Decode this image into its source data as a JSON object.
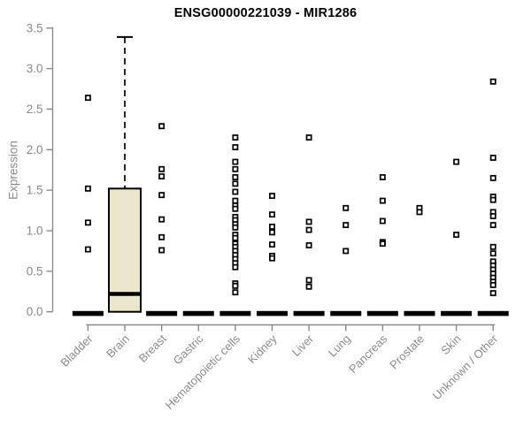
{
  "chart_data": {
    "type": "boxplot",
    "title": "ENSG00000221039 - MIR1286",
    "ylabel": "Expression",
    "xlabel": "",
    "ylim": [
      0,
      3.5
    ],
    "yticks": [
      0,
      0.5,
      1,
      1.5,
      2,
      2.5,
      3,
      3.5
    ],
    "grid": false,
    "legend": "none",
    "colors": {
      "box_fill": "#ece6cc",
      "box_stroke": "#000000",
      "axis": "#8a8a8a",
      "tick_label": "#8a8a8a",
      "data": "#000000",
      "background": "#ffffff"
    },
    "categories": [
      "Bladder",
      "Brain",
      "Breast",
      "Gastric",
      "Hematopoietic cells",
      "Kidney",
      "Liver",
      "Lung",
      "Pancreas",
      "Prostate",
      "Skin",
      "Unknown / Other"
    ],
    "boxes": [
      {
        "category": "Bladder",
        "q1": 0,
        "median": 0,
        "q3": 0,
        "whisker_low": 0,
        "whisker_high": 0,
        "outliers": [
          2.64,
          1.52,
          1.1,
          0.77
        ]
      },
      {
        "category": "Brain",
        "q1": 0,
        "median": 0.22,
        "q3": 1.52,
        "whisker_low": 0,
        "whisker_high": 3.39,
        "outliers": []
      },
      {
        "category": "Breast",
        "q1": 0,
        "median": 0,
        "q3": 0,
        "whisker_low": 0,
        "whisker_high": 0,
        "outliers": [
          2.29,
          1.76,
          1.67,
          1.44,
          1.14,
          0.92,
          0.76
        ]
      },
      {
        "category": "Gastric",
        "q1": 0,
        "median": 0,
        "q3": 0,
        "whisker_low": 0,
        "whisker_high": 0,
        "outliers": []
      },
      {
        "category": "Hematopoietic cells",
        "q1": 0,
        "median": 0,
        "q3": 0,
        "whisker_low": 0,
        "whisker_high": 0,
        "outliers": [
          2.15,
          2.03,
          1.85,
          1.76,
          1.66,
          1.58,
          1.48,
          1.37,
          1.31,
          1.27,
          1.17,
          1.13,
          1.08,
          1.04,
          0.95,
          0.91,
          0.84,
          0.8,
          0.75,
          0.7,
          0.65,
          0.6,
          0.55,
          0.35,
          0.32,
          0.24
        ]
      },
      {
        "category": "Kidney",
        "q1": 0,
        "median": 0,
        "q3": 0,
        "whisker_low": 0,
        "whisker_high": 0,
        "outliers": [
          1.43,
          1.2,
          1.05,
          0.98,
          0.83,
          0.69,
          0.66
        ]
      },
      {
        "category": "Liver",
        "q1": 0,
        "median": 0,
        "q3": 0,
        "whisker_low": 0,
        "whisker_high": 0,
        "outliers": [
          2.15,
          1.11,
          1.01,
          0.82,
          0.39,
          0.31
        ]
      },
      {
        "category": "Lung",
        "q1": 0,
        "median": 0,
        "q3": 0,
        "whisker_low": 0,
        "whisker_high": 0,
        "outliers": [
          1.28,
          1.07,
          0.75
        ]
      },
      {
        "category": "Pancreas",
        "q1": 0,
        "median": 0,
        "q3": 0,
        "whisker_low": 0,
        "whisker_high": 0,
        "outliers": [
          1.66,
          1.37,
          1.12,
          0.86,
          0.84
        ]
      },
      {
        "category": "Prostate",
        "q1": 0,
        "median": 0,
        "q3": 0,
        "whisker_low": 0,
        "whisker_high": 0,
        "outliers": [
          1.28,
          1.23
        ]
      },
      {
        "category": "Skin",
        "q1": 0,
        "median": 0,
        "q3": 0,
        "whisker_low": 0,
        "whisker_high": 0,
        "outliers": [
          1.85,
          0.95
        ]
      },
      {
        "category": "Unknown / Other",
        "q1": 0,
        "median": 0,
        "q3": 0,
        "whisker_low": 0,
        "whisker_high": 0,
        "outliers": [
          2.84,
          1.9,
          1.65,
          1.42,
          1.38,
          1.23,
          1.18,
          1.07,
          0.8,
          0.72,
          0.62,
          0.57,
          0.52,
          0.47,
          0.42,
          0.37,
          0.33,
          0.23
        ]
      }
    ]
  }
}
